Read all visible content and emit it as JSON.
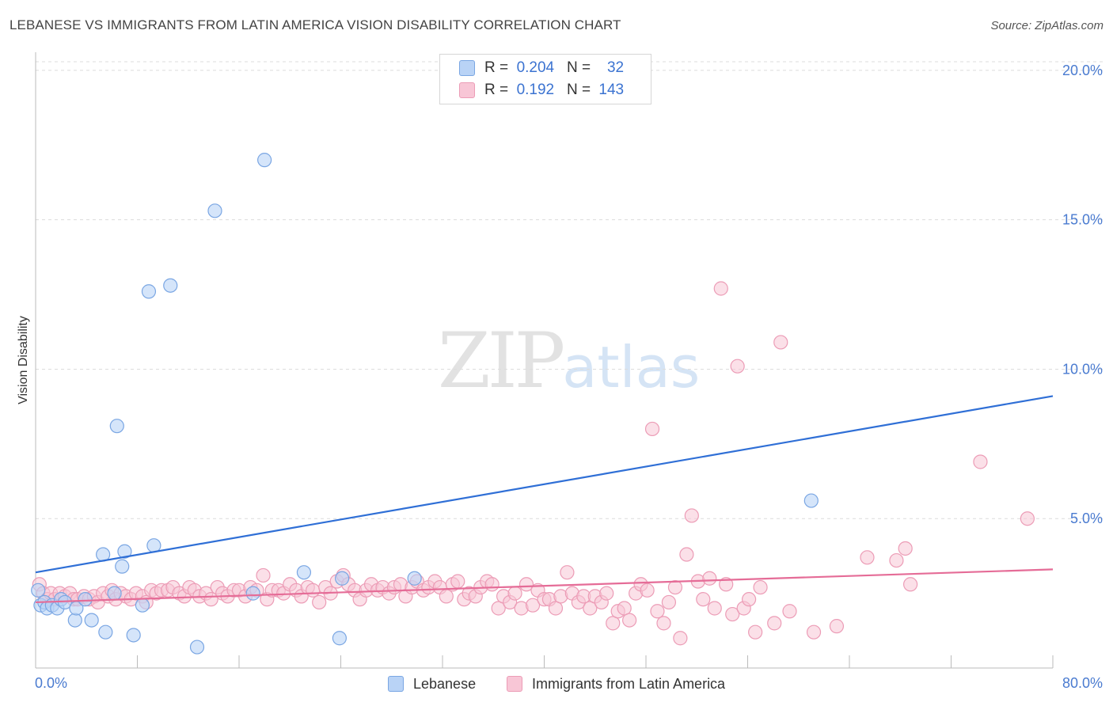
{
  "header": {
    "title": "LEBANESE VS IMMIGRANTS FROM LATIN AMERICA VISION DISABILITY CORRELATION CHART",
    "source": "Source: ZipAtlas.com"
  },
  "watermark": {
    "zip": "ZIP",
    "atlas": "atlas"
  },
  "legend": {
    "lebanese": {
      "r_label": "R =",
      "r_value": "0.204",
      "n_label": "N =",
      "n_value": "32"
    },
    "latin": {
      "r_label": "R =",
      "r_value": "0.192",
      "n_label": "N =",
      "n_value": "143"
    }
  },
  "bottom_legend": {
    "lebanese": "Lebanese",
    "latin": "Immigrants from Latin America"
  },
  "colors": {
    "lebanese_fill": "#b9d3f6",
    "lebanese_stroke": "#7aa6e3",
    "lebanese_line": "#2f6fd6",
    "latin_fill": "#f8c6d6",
    "latin_stroke": "#ec9cb6",
    "latin_line": "#e56c97",
    "tick_text": "#4a7bd0"
  },
  "chart_data": {
    "type": "scatter",
    "title": "LEBANESE VS IMMIGRANTS FROM LATIN AMERICA VISION DISABILITY CORRELATION CHART",
    "xlabel": "",
    "ylabel": "Vision Disability",
    "xlim": [
      0,
      80
    ],
    "ylim": [
      0,
      20.5
    ],
    "x_tick_labels": [
      "0.0%",
      "80.0%"
    ],
    "y_ticks": [
      {
        "value": 5,
        "label": "5.0%"
      },
      {
        "value": 10,
        "label": "10.0%"
      },
      {
        "value": 15,
        "label": "15.0%"
      },
      {
        "value": 20,
        "label": "20.0%"
      }
    ],
    "series": [
      {
        "name": "Lebanese",
        "r": 0.204,
        "n": 32,
        "trend": {
          "x0": 0,
          "y0": 3.2,
          "x1": 80,
          "y1": 9.1
        },
        "points": [
          [
            0.2,
            2.6
          ],
          [
            0.4,
            2.1
          ],
          [
            0.7,
            2.2
          ],
          [
            0.9,
            2.0
          ],
          [
            1.3,
            2.1
          ],
          [
            1.7,
            2.0
          ],
          [
            2.0,
            2.3
          ],
          [
            2.3,
            2.2
          ],
          [
            3.1,
            1.6
          ],
          [
            3.2,
            2.0
          ],
          [
            3.9,
            2.3
          ],
          [
            4.4,
            1.6
          ],
          [
            5.3,
            3.8
          ],
          [
            5.5,
            1.2
          ],
          [
            6.2,
            2.5
          ],
          [
            6.4,
            8.1
          ],
          [
            6.8,
            3.4
          ],
          [
            7.0,
            3.9
          ],
          [
            7.7,
            1.1
          ],
          [
            8.4,
            2.1
          ],
          [
            8.9,
            12.6
          ],
          [
            9.3,
            4.1
          ],
          [
            10.6,
            12.8
          ],
          [
            12.7,
            0.7
          ],
          [
            14.1,
            15.3
          ],
          [
            17.1,
            2.5
          ],
          [
            18.0,
            17.0
          ],
          [
            21.1,
            3.2
          ],
          [
            23.9,
            1.0
          ],
          [
            24.1,
            3.0
          ],
          [
            29.8,
            3.0
          ],
          [
            61.0,
            5.6
          ]
        ]
      },
      {
        "name": "Immigrants from Latin America",
        "r": 0.192,
        "n": 143,
        "trend": {
          "x0": 0,
          "y0": 2.2,
          "x1": 80,
          "y1": 3.3
        },
        "points": [
          [
            0.3,
            2.8
          ],
          [
            0.6,
            2.5
          ],
          [
            0.9,
            2.3
          ],
          [
            1.2,
            2.5
          ],
          [
            1.5,
            2.3
          ],
          [
            1.9,
            2.5
          ],
          [
            2.3,
            2.4
          ],
          [
            2.7,
            2.5
          ],
          [
            3.0,
            2.3
          ],
          [
            3.3,
            2.3
          ],
          [
            3.8,
            2.4
          ],
          [
            4.2,
            2.3
          ],
          [
            4.6,
            2.4
          ],
          [
            4.9,
            2.2
          ],
          [
            5.3,
            2.5
          ],
          [
            5.7,
            2.4
          ],
          [
            6.0,
            2.6
          ],
          [
            6.3,
            2.3
          ],
          [
            6.7,
            2.5
          ],
          [
            7.1,
            2.4
          ],
          [
            7.5,
            2.3
          ],
          [
            7.9,
            2.5
          ],
          [
            8.4,
            2.4
          ],
          [
            8.7,
            2.2
          ],
          [
            9.1,
            2.6
          ],
          [
            9.5,
            2.5
          ],
          [
            9.9,
            2.6
          ],
          [
            10.4,
            2.6
          ],
          [
            10.8,
            2.7
          ],
          [
            11.3,
            2.5
          ],
          [
            11.7,
            2.4
          ],
          [
            12.1,
            2.7
          ],
          [
            12.5,
            2.6
          ],
          [
            12.9,
            2.4
          ],
          [
            13.4,
            2.5
          ],
          [
            13.8,
            2.3
          ],
          [
            14.3,
            2.7
          ],
          [
            14.7,
            2.5
          ],
          [
            15.1,
            2.4
          ],
          [
            15.6,
            2.6
          ],
          [
            16.0,
            2.6
          ],
          [
            16.5,
            2.4
          ],
          [
            16.9,
            2.7
          ],
          [
            17.4,
            2.6
          ],
          [
            17.9,
            3.1
          ],
          [
            18.2,
            2.3
          ],
          [
            18.6,
            2.6
          ],
          [
            19.1,
            2.6
          ],
          [
            19.5,
            2.5
          ],
          [
            20.0,
            2.8
          ],
          [
            20.5,
            2.6
          ],
          [
            20.9,
            2.4
          ],
          [
            21.4,
            2.7
          ],
          [
            21.8,
            2.6
          ],
          [
            22.3,
            2.2
          ],
          [
            22.8,
            2.7
          ],
          [
            23.2,
            2.5
          ],
          [
            23.7,
            2.9
          ],
          [
            24.2,
            3.1
          ],
          [
            24.6,
            2.8
          ],
          [
            25.1,
            2.6
          ],
          [
            25.5,
            2.3
          ],
          [
            26.0,
            2.6
          ],
          [
            26.4,
            2.8
          ],
          [
            26.9,
            2.6
          ],
          [
            27.3,
            2.7
          ],
          [
            27.8,
            2.5
          ],
          [
            28.2,
            2.7
          ],
          [
            28.7,
            2.8
          ],
          [
            29.1,
            2.4
          ],
          [
            29.6,
            2.7
          ],
          [
            30.0,
            2.9
          ],
          [
            30.5,
            2.6
          ],
          [
            30.9,
            2.7
          ],
          [
            31.4,
            2.9
          ],
          [
            31.8,
            2.7
          ],
          [
            32.3,
            2.4
          ],
          [
            32.8,
            2.8
          ],
          [
            33.2,
            2.9
          ],
          [
            33.7,
            2.3
          ],
          [
            34.1,
            2.5
          ],
          [
            34.6,
            2.4
          ],
          [
            35.0,
            2.7
          ],
          [
            35.5,
            2.9
          ],
          [
            35.9,
            2.8
          ],
          [
            36.4,
            2.0
          ],
          [
            36.8,
            2.4
          ],
          [
            37.3,
            2.2
          ],
          [
            37.7,
            2.5
          ],
          [
            38.2,
            2.0
          ],
          [
            38.6,
            2.8
          ],
          [
            39.1,
            2.1
          ],
          [
            39.5,
            2.6
          ],
          [
            40.0,
            2.3
          ],
          [
            40.4,
            2.3
          ],
          [
            40.9,
            2.0
          ],
          [
            41.3,
            2.4
          ],
          [
            41.8,
            3.2
          ],
          [
            42.2,
            2.5
          ],
          [
            42.7,
            2.2
          ],
          [
            43.1,
            2.4
          ],
          [
            43.6,
            2.0
          ],
          [
            44.0,
            2.4
          ],
          [
            44.5,
            2.2
          ],
          [
            44.9,
            2.5
          ],
          [
            45.4,
            1.5
          ],
          [
            45.8,
            1.9
          ],
          [
            46.3,
            2.0
          ],
          [
            46.7,
            1.6
          ],
          [
            47.2,
            2.5
          ],
          [
            47.6,
            2.8
          ],
          [
            48.1,
            2.6
          ],
          [
            48.5,
            8.0
          ],
          [
            48.9,
            1.9
          ],
          [
            49.4,
            1.5
          ],
          [
            49.8,
            2.2
          ],
          [
            50.3,
            2.7
          ],
          [
            50.7,
            1.0
          ],
          [
            51.2,
            3.8
          ],
          [
            51.6,
            5.1
          ],
          [
            52.1,
            2.9
          ],
          [
            52.5,
            2.3
          ],
          [
            53.0,
            3.0
          ],
          [
            53.4,
            2.0
          ],
          [
            53.9,
            12.7
          ],
          [
            54.3,
            2.8
          ],
          [
            54.8,
            1.8
          ],
          [
            55.2,
            10.1
          ],
          [
            55.7,
            2.0
          ],
          [
            56.1,
            2.3
          ],
          [
            56.6,
            1.2
          ],
          [
            57.0,
            2.7
          ],
          [
            58.1,
            1.5
          ],
          [
            58.6,
            10.9
          ],
          [
            59.3,
            1.9
          ],
          [
            61.2,
            1.2
          ],
          [
            63.0,
            1.4
          ],
          [
            65.4,
            3.7
          ],
          [
            67.7,
            3.6
          ],
          [
            68.4,
            4.0
          ],
          [
            68.8,
            2.8
          ],
          [
            74.3,
            6.9
          ],
          [
            78.0,
            5.0
          ]
        ]
      }
    ]
  }
}
